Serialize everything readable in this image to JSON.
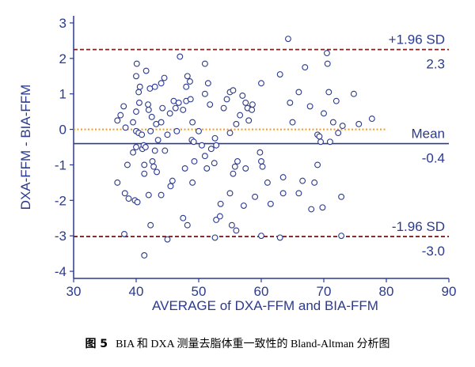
{
  "caption": {
    "figure_label": "图 5",
    "text": "BIA 和 DXA 测量去脂体重一致性的 Bland-Altman 分析图"
  },
  "colors": {
    "axis": "#2b3a8f",
    "points": "#2b3a8f",
    "limit_lines": "#8b1a1a",
    "mean_line": "#2b3a8f",
    "zero_line": "#f39c12"
  },
  "chart_data": {
    "type": "scatter",
    "title": "",
    "xlabel": "AVERAGE of DXA-FFM and BIA-FFM",
    "ylabel": "DXA-FFM - BIA-FFM",
    "xlim": [
      30,
      90
    ],
    "ylim": [
      -4.2,
      3.2
    ],
    "xticks": [
      30,
      40,
      50,
      60,
      70,
      80,
      90
    ],
    "yticks": [
      -4,
      -3,
      -2,
      -1,
      0,
      1,
      2,
      3
    ],
    "grid": false,
    "reference_lines": [
      {
        "name": "upper_loa",
        "label": "+1.96 SD",
        "value_label": "2.3",
        "y": 2.25,
        "style": "dashed",
        "color": "#8b1a1a",
        "x_from": 30,
        "x_to": 90
      },
      {
        "name": "mean",
        "label": "Mean",
        "value_label": "-0.4",
        "y": -0.4,
        "style": "solid",
        "color": "#2b3a8f",
        "x_from": 30,
        "x_to": 90
      },
      {
        "name": "lower_loa",
        "label": "-1.96 SD",
        "value_label": "-3.0",
        "y": -3.02,
        "style": "dashed",
        "color": "#8b1a1a",
        "x_from": 30,
        "x_to": 90
      },
      {
        "name": "zero",
        "label": "",
        "value_label": "",
        "y": 0,
        "style": "dotted",
        "color": "#f39c12",
        "x_from": 30,
        "x_to": 80
      }
    ],
    "points": [
      [
        37.0,
        0.25
      ],
      [
        37.5,
        0.4
      ],
      [
        38.0,
        0.65
      ],
      [
        38.3,
        0.05
      ],
      [
        37.0,
        -1.5
      ],
      [
        38.2,
        -1.8
      ],
      [
        38.6,
        -1.0
      ],
      [
        38.8,
        -1.95
      ],
      [
        38.1,
        -2.95
      ],
      [
        39.5,
        0.2
      ],
      [
        39.5,
        -0.65
      ],
      [
        40.0,
        -0.5
      ],
      [
        39.8,
        -2.0
      ],
      [
        40.2,
        -2.05
      ],
      [
        40.0,
        0.5
      ],
      [
        40.0,
        1.5
      ],
      [
        40.1,
        1.85
      ],
      [
        40.4,
        1.05
      ],
      [
        40.6,
        1.2
      ],
      [
        40.5,
        0.75
      ],
      [
        40.0,
        -0.05
      ],
      [
        40.4,
        -0.1
      ],
      [
        40.9,
        -0.15
      ],
      [
        41.0,
        -0.55
      ],
      [
        41.2,
        -0.45
      ],
      [
        41.3,
        -1.0
      ],
      [
        41.3,
        -1.25
      ],
      [
        41.5,
        -0.5
      ],
      [
        41.9,
        0.7
      ],
      [
        42.0,
        0.55
      ],
      [
        41.6,
        1.65
      ],
      [
        42.2,
        1.15
      ],
      [
        42.3,
        -0.05
      ],
      [
        42.5,
        0.35
      ],
      [
        42.6,
        -0.9
      ],
      [
        42.0,
        -1.85
      ],
      [
        42.8,
        -1.05
      ],
      [
        42.3,
        -2.7
      ],
      [
        41.3,
        -3.55
      ],
      [
        43.0,
        1.2
      ],
      [
        43.2,
        0.15
      ],
      [
        43.5,
        -0.3
      ],
      [
        43.0,
        -0.6
      ],
      [
        43.3,
        -1.2
      ],
      [
        44.0,
        1.3
      ],
      [
        44.5,
        1.45
      ],
      [
        44.2,
        0.6
      ],
      [
        44.0,
        0.2
      ],
      [
        44.6,
        -0.6
      ],
      [
        44.0,
        -1.85
      ],
      [
        45.0,
        -0.15
      ],
      [
        45.4,
        0.45
      ],
      [
        45.0,
        -3.1
      ],
      [
        45.8,
        -1.45
      ],
      [
        45.5,
        -1.6
      ],
      [
        46.0,
        0.8
      ],
      [
        46.3,
        0.6
      ],
      [
        46.5,
        -0.05
      ],
      [
        46.8,
        0.75
      ],
      [
        47.0,
        2.05
      ],
      [
        47.5,
        0.55
      ],
      [
        47.8,
        -1.1
      ],
      [
        47.5,
        -2.5
      ],
      [
        48.0,
        1.2
      ],
      [
        48.0,
        0.8
      ],
      [
        48.2,
        1.5
      ],
      [
        48.6,
        1.35
      ],
      [
        48.7,
        0.85
      ],
      [
        48.2,
        -2.7
      ],
      [
        48.9,
        -0.3
      ],
      [
        49.2,
        -0.35
      ],
      [
        49.3,
        -0.9
      ],
      [
        49.0,
        -1.5
      ],
      [
        49.0,
        0.2
      ],
      [
        50.0,
        -0.05
      ],
      [
        50.5,
        -0.45
      ],
      [
        51.0,
        -0.75
      ],
      [
        51.3,
        -1.1
      ],
      [
        51.0,
        1.85
      ],
      [
        51.5,
        1.3
      ],
      [
        51.0,
        1.0
      ],
      [
        51.8,
        0.7
      ],
      [
        52.0,
        -0.55
      ],
      [
        52.5,
        -0.95
      ],
      [
        52.6,
        -0.25
      ],
      [
        52.8,
        -0.45
      ],
      [
        52.6,
        -3.05
      ],
      [
        52.8,
        -2.55
      ],
      [
        53.4,
        -2.45
      ],
      [
        53.5,
        -2.1
      ],
      [
        54.0,
        0.6
      ],
      [
        54.5,
        0.85
      ],
      [
        55.0,
        1.05
      ],
      [
        55.5,
        1.1
      ],
      [
        55.0,
        -0.1
      ],
      [
        55.5,
        -1.25
      ],
      [
        55.0,
        -1.8
      ],
      [
        55.3,
        -2.7
      ],
      [
        55.8,
        -1.05
      ],
      [
        56.0,
        0.15
      ],
      [
        56.2,
        -0.9
      ],
      [
        56.6,
        0.4
      ],
      [
        56.0,
        -2.85
      ],
      [
        57.0,
        0.95
      ],
      [
        57.5,
        -1.1
      ],
      [
        57.5,
        0.75
      ],
      [
        57.8,
        0.6
      ],
      [
        57.2,
        -2.15
      ],
      [
        58.0,
        0.25
      ],
      [
        58.5,
        0.55
      ],
      [
        58.6,
        0.7
      ],
      [
        59.0,
        -1.9
      ],
      [
        59.8,
        -0.65
      ],
      [
        60.0,
        -0.9
      ],
      [
        60.0,
        1.3
      ],
      [
        60.2,
        -1.05
      ],
      [
        60.0,
        -3.0
      ],
      [
        61.0,
        -1.5
      ],
      [
        61.5,
        -2.1
      ],
      [
        63.0,
        1.55
      ],
      [
        63.5,
        -1.35
      ],
      [
        63.5,
        -1.8
      ],
      [
        63.0,
        -3.05
      ],
      [
        64.3,
        2.55
      ],
      [
        64.6,
        0.75
      ],
      [
        65.0,
        0.2
      ],
      [
        66.0,
        1.05
      ],
      [
        66.6,
        -1.45
      ],
      [
        66.0,
        -1.8
      ],
      [
        67.0,
        1.75
      ],
      [
        67.8,
        0.65
      ],
      [
        68.0,
        -2.25
      ],
      [
        68.5,
        -1.5
      ],
      [
        69.0,
        -0.15
      ],
      [
        69.5,
        -0.35
      ],
      [
        69.3,
        -0.2
      ],
      [
        69.0,
        -1.0
      ],
      [
        69.8,
        -2.2
      ],
      [
        70.0,
        0.45
      ],
      [
        70.5,
        2.15
      ],
      [
        70.6,
        1.85
      ],
      [
        70.8,
        1.05
      ],
      [
        71.0,
        -0.35
      ],
      [
        71.5,
        0.2
      ],
      [
        72.0,
        0.8
      ],
      [
        72.3,
        -0.1
      ],
      [
        72.8,
        -1.9
      ],
      [
        73.0,
        0.1
      ],
      [
        72.8,
        -3.0
      ],
      [
        74.8,
        1.0
      ],
      [
        75.6,
        0.15
      ],
      [
        77.7,
        0.3
      ]
    ]
  }
}
